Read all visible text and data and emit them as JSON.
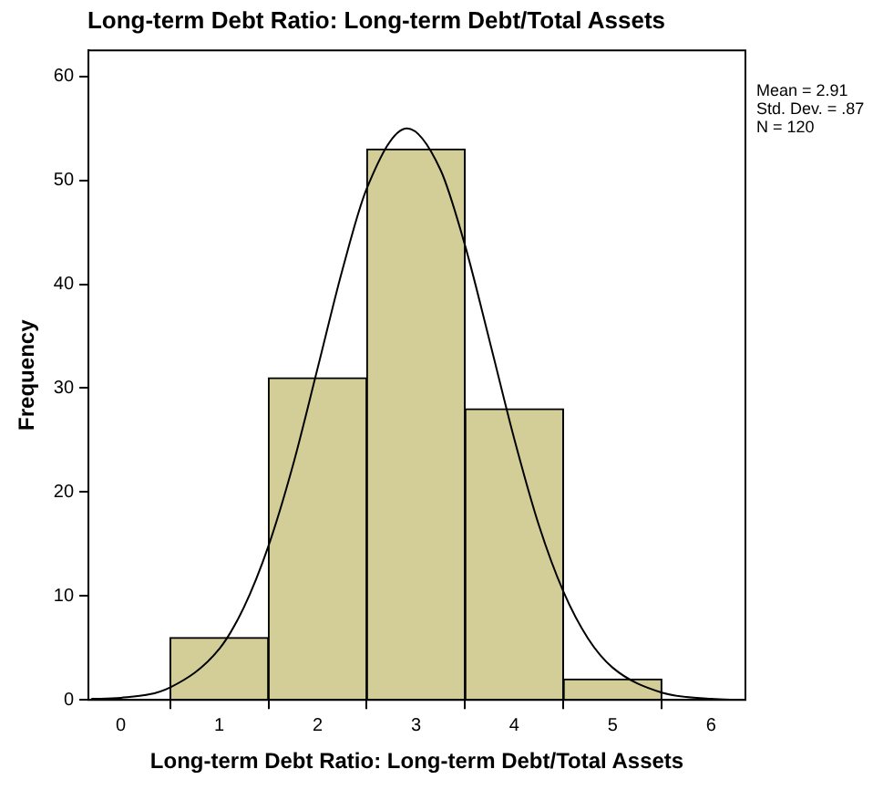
{
  "chart_data": {
    "type": "histogram",
    "title": "Long-term Debt Ratio: Long-term Debt/Total Assets",
    "xlabel": "Long-term Debt Ratio: Long-term Debt/Total Assets",
    "ylabel": "Frequency",
    "bins": [
      0.5,
      1.5,
      2.5,
      3.5,
      4.5,
      5.5
    ],
    "values": [
      6,
      31,
      53,
      28,
      2
    ],
    "color": "#d3ce97",
    "series": [
      {
        "type": "line",
        "color": "#000000",
        "x": [
          -0.3,
          0,
          0.5,
          1,
          1.25,
          1.5,
          1.75,
          2,
          2.25,
          2.5,
          2.91,
          3.25,
          3.5,
          3.75,
          4,
          4.25,
          4.5,
          4.75,
          5,
          5.5,
          6,
          6.3
        ],
        "values": [
          0.1,
          0.2,
          1.2,
          4.9,
          8.9,
          14.8,
          22.6,
          31.9,
          41.3,
          49.2,
          55,
          51,
          43.7,
          34.5,
          25.1,
          16.8,
          10.4,
          5.9,
          3.1,
          0.7,
          0.1,
          0
        ]
      }
    ],
    "xlim": [
      -0.33,
      6.35
    ],
    "xticks": [
      0,
      1,
      2,
      3,
      4,
      5,
      6
    ],
    "ylim": [
      0,
      62.5
    ],
    "yticks": [
      0,
      10,
      20,
      30,
      40,
      50,
      60
    ],
    "grid": false,
    "legend": false,
    "marker": "none",
    "annotations": [
      "Mean = 2.91",
      "Std. Dev. = .87",
      "N = 120"
    ]
  }
}
